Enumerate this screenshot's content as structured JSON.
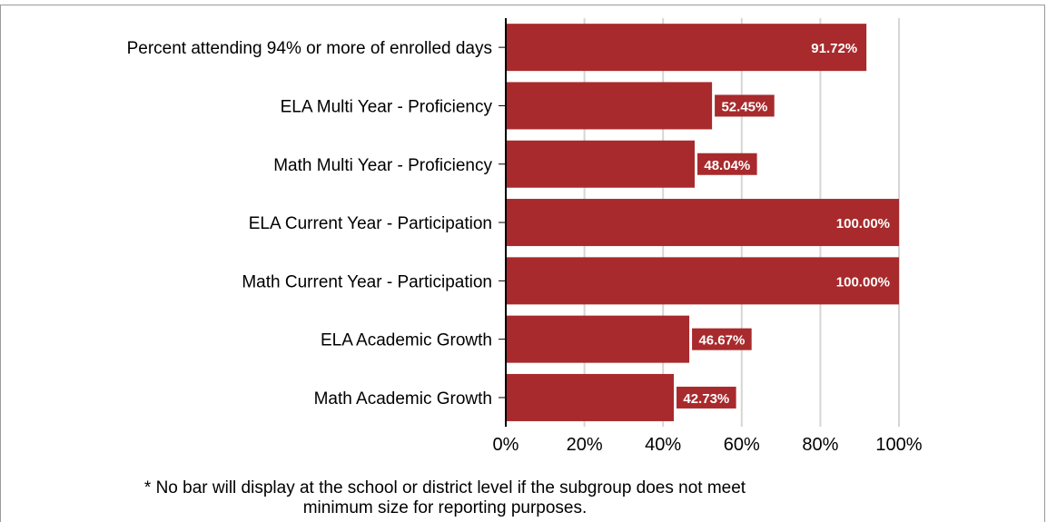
{
  "chart_data": {
    "type": "bar",
    "orientation": "horizontal",
    "categories": [
      "Percent attending 94% or more of enrolled days",
      "ELA Multi Year - Proficiency",
      "Math Multi Year - Proficiency",
      "ELA Current Year - Participation",
      "Math Current Year - Participation",
      "ELA Academic Growth",
      "Math Academic Growth"
    ],
    "values": [
      91.72,
      52.45,
      48.04,
      100.0,
      100.0,
      46.67,
      42.73
    ],
    "data_labels": [
      "91.72%",
      "52.45%",
      "48.04%",
      "100.00%",
      "100.00%",
      "46.67%",
      "42.73%"
    ],
    "xlim": [
      0,
      100
    ],
    "xticks": [
      "0%",
      "20%",
      "40%",
      "60%",
      "80%",
      "100%"
    ],
    "grid": "vertical",
    "bar_color": "#a82a2c"
  },
  "footnote": {
    "line1": "* No bar will display at the school or district level if the subgroup does not meet",
    "line2": "minimum size for reporting purposes."
  }
}
